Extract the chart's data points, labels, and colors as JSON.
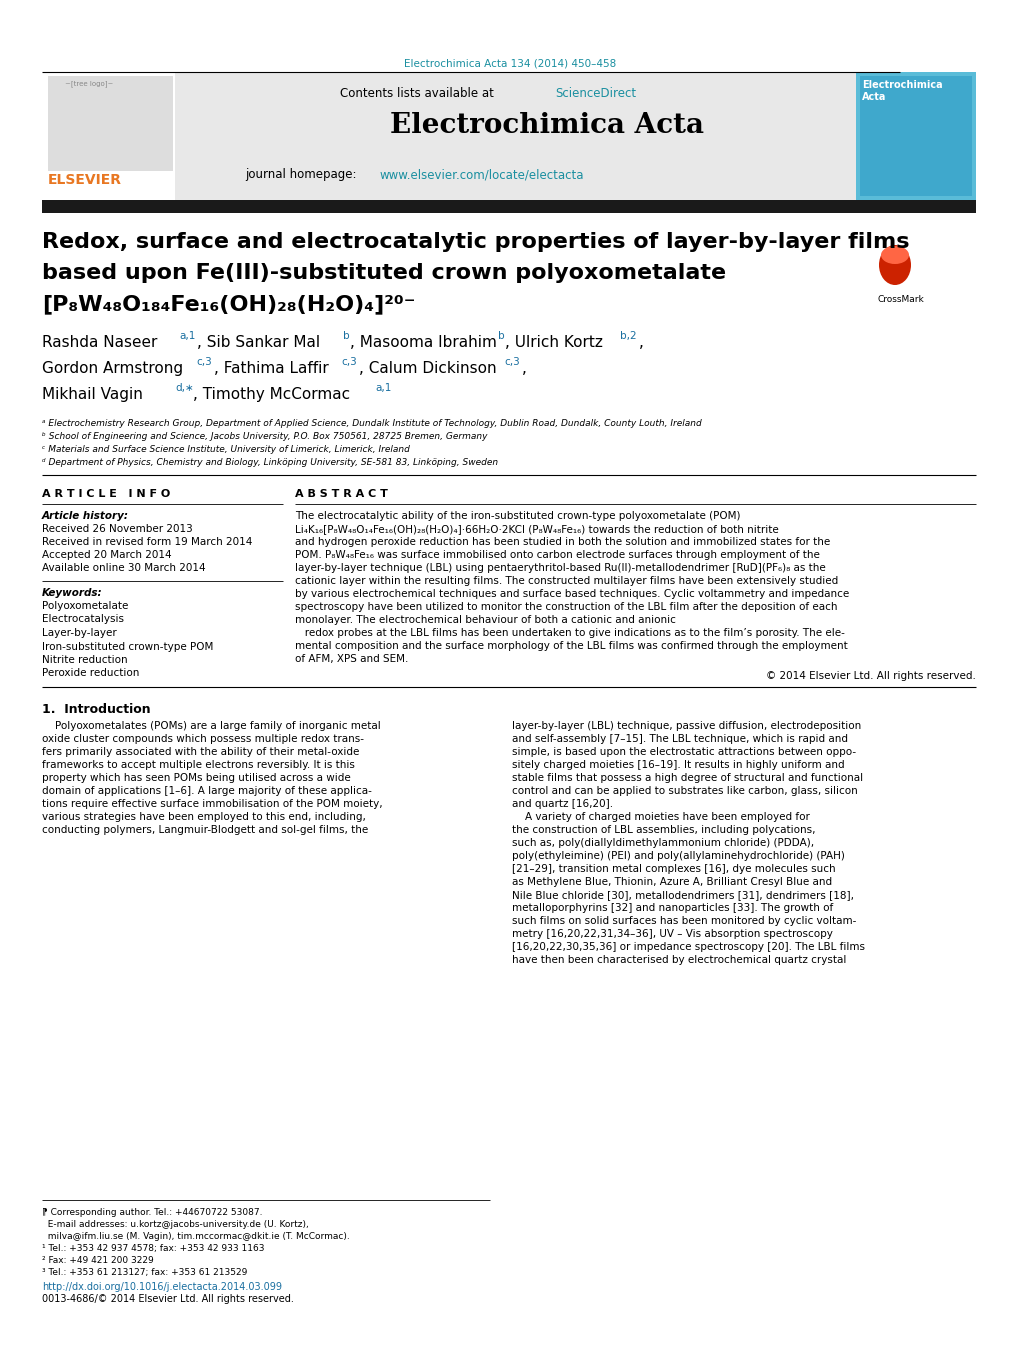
{
  "journal_ref": "Electrochimica Acta 134 (2014) 450–458",
  "journal_ref_color": "#1a8fa0",
  "sciencedirect_color": "#1a8fa0",
  "journal_homepage_url_color": "#1a8fa0",
  "blue_link_color": "#1a6fa0",
  "title_line1": "Redox, surface and electrocatalytic properties of layer-by-layer films",
  "title_line2": "based upon Fe(III)-substituted crown polyoxometalate",
  "title_line3": "[P₈W₄₈O₁₈₄Fe₁₆(OH)₂₈(H₂O)₄]²⁰⁻",
  "affil_a": "ᵃ Electrochemistry Research Group, Department of Applied Science, Dundalk Institute of Technology, Dublin Road, Dundalk, County Louth, Ireland",
  "affil_b": "ᵇ School of Engineering and Science, Jacobs University, P.O. Box 750561, 28725 Bremen, Germany",
  "affil_c": "ᶜ Materials and Surface Science Institute, University of Limerick, Limerick, Ireland",
  "affil_d": "ᵈ Department of Physics, Chemistry and Biology, Linköping University, SE-581 83, Linköping, Sweden",
  "article_info_header": "A R T I C L E   I N F O",
  "abstract_header": "A B S T R A C T",
  "article_history_label": "Article history:",
  "received_text": "Received 26 November 2013",
  "revised_text": "Received in revised form 19 March 2014",
  "accepted_text": "Accepted 20 March 2014",
  "available_text": "Available online 30 March 2014",
  "keywords_label": "Keywords:",
  "keywords": [
    "Polyoxometalate",
    "Electrocatalysis",
    "Layer-by-layer",
    "Iron-substituted crown-type POM",
    "Nitrite reduction",
    "Peroxide reduction"
  ],
  "copyright_text": "© 2014 Elsevier Ltd. All rights reserved.",
  "intro_header": "1.  Introduction",
  "doi_text": "http://dx.doi.org/10.1016/j.electacta.2014.03.099",
  "issn_text": "0013-4686/© 2014 Elsevier Ltd. All rights reserved.",
  "bg_color": "#ffffff",
  "header_bg_color": "#e8e8e8",
  "black_bar_color": "#1a1a1a",
  "elsevier_color": "#e87722",
  "cover_color": "#5abcd8"
}
